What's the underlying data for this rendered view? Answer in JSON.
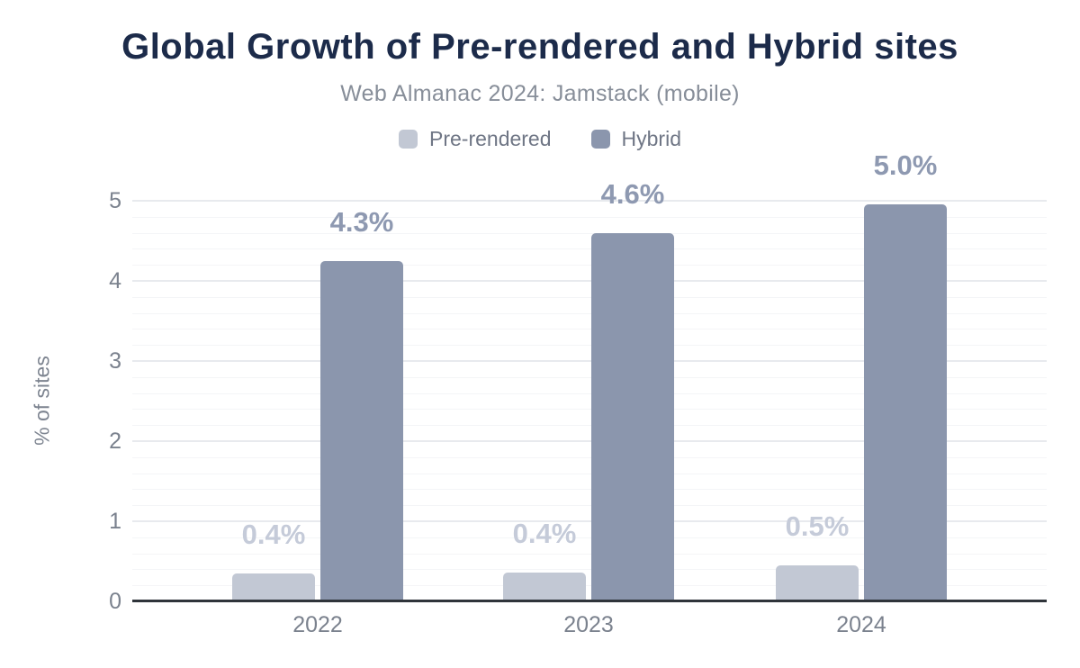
{
  "title": "Global Growth of Pre-rendered and Hybrid sites",
  "subtitle": "Web Almanac 2024: Jamstack (mobile)",
  "legend": {
    "items": [
      {
        "label": "Pre-rendered"
      },
      {
        "label": "Hybrid"
      }
    ]
  },
  "colors": {
    "title": "#1c2b4a",
    "subtitle": "#878e99",
    "prerendered": "#c2c8d4",
    "hybrid": "#8b96ad",
    "prerendered_label": "#c5cbd9",
    "hybrid_label": "#8e99b1",
    "axis_text": "#7b828e",
    "axis_line": "#2f343a",
    "grid_major": "#e8eaee",
    "grid_minor": "#f4f5f7"
  },
  "chart_data": {
    "type": "bar",
    "title": "Global Growth of Pre-rendered and Hybrid sites",
    "subtitle": "Web Almanac 2024: Jamstack (mobile)",
    "categories": [
      "2022",
      "2023",
      "2024"
    ],
    "series": [
      {
        "name": "Pre-rendered",
        "values": [
          0.4,
          0.4,
          0.5
        ],
        "labels": [
          "0.4%",
          "0.4%",
          "0.5%"
        ],
        "bar_heights_pct": [
          0.35,
          0.36,
          0.45
        ]
      },
      {
        "name": "Hybrid",
        "values": [
          4.3,
          4.6,
          5.0
        ],
        "labels": [
          "4.3%",
          "4.6%",
          "5.0%"
        ],
        "bar_heights_pct": [
          4.25,
          4.6,
          4.95
        ]
      }
    ],
    "xlabel": "",
    "ylabel": "% of sites",
    "ylim": [
      0,
      5
    ],
    "yticks": [
      0,
      1,
      2,
      3,
      4,
      5
    ],
    "minor_grid_step": 0.2,
    "grid": "horizontal, major and minor lines",
    "legend_position": "top-center"
  }
}
